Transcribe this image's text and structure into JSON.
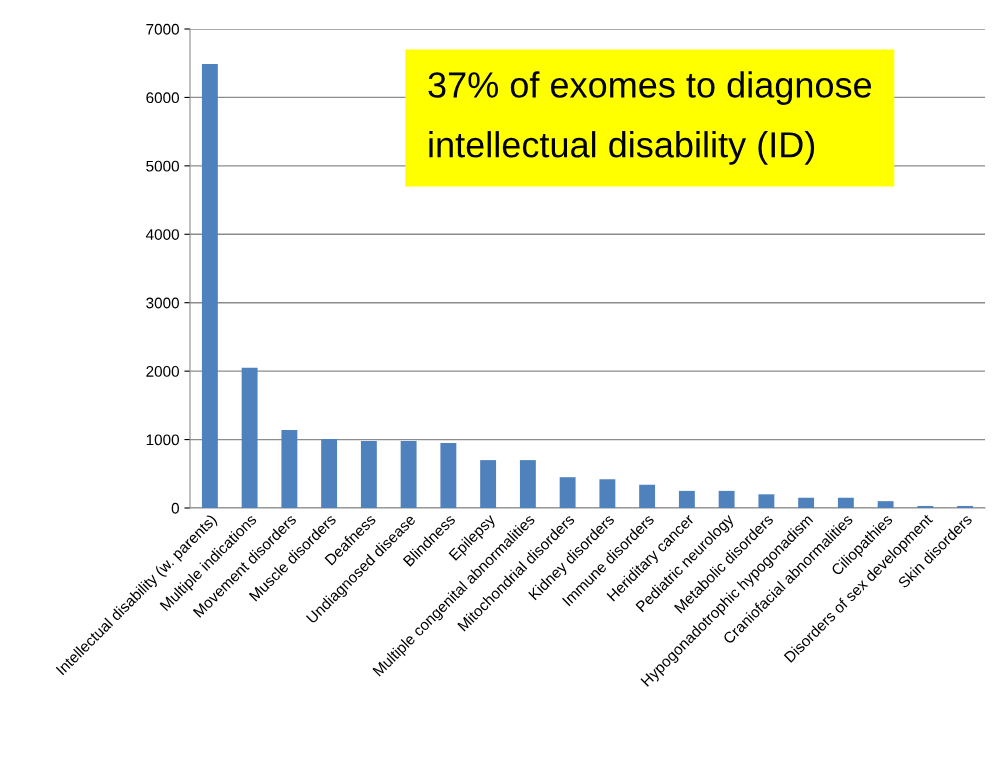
{
  "chart_data": {
    "type": "bar",
    "categories": [
      "Intellectual disability (w. parents)",
      "Multiple indications",
      "Movement disorders",
      "Muscle disorders",
      "Deafness",
      "Undiagnosed disease",
      "Blindness",
      "Epilepsy",
      "Multiple congenital abnormalities",
      "Mitochondrial disorders",
      "Kidney disorders",
      "Immune disorders",
      "Heriditary cancer",
      "Pediatric neurology",
      "Metabolic disorders",
      "Hypogonadotrophic hypogonadism",
      "Craniofacial abnormalities",
      "Ciliopathies",
      "Disorders of sex development",
      "Skin disorders"
    ],
    "values": [
      6490,
      2050,
      1140,
      1010,
      980,
      980,
      950,
      700,
      700,
      450,
      420,
      340,
      250,
      250,
      200,
      150,
      150,
      100,
      30,
      30
    ],
    "color": "#4f81bd",
    "ylim": [
      0,
      7000
    ],
    "yticks": [
      0,
      1000,
      2000,
      3000,
      4000,
      5000,
      6000,
      7000
    ],
    "grid": "y",
    "legend": false,
    "annotations": [
      "37% of exomes to diagnose\nintellectual disability (ID)"
    ]
  }
}
